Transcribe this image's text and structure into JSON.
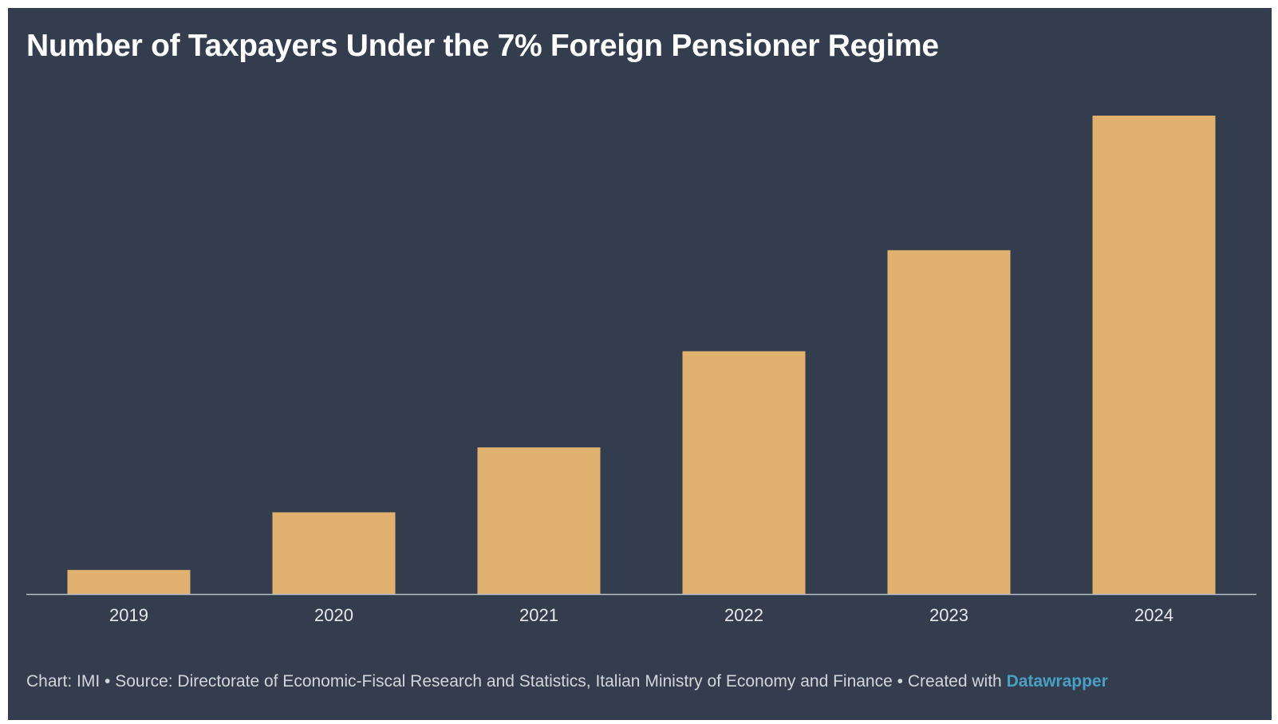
{
  "chart_data": {
    "type": "bar",
    "title": "Number of Taxpayers Under the 7% Foreign Pensioner Regime",
    "categories": [
      "2019",
      "2020",
      "2021",
      "2022",
      "2023",
      "2024"
    ],
    "values": [
      1,
      3.4,
      6.1,
      10.1,
      14.3,
      19.9
    ],
    "xlabel": "",
    "ylabel": "",
    "ylim": [
      0,
      19.9
    ],
    "grid": false,
    "legend": "none",
    "bar_color": "#e1b26f",
    "background_color": "#333d4e",
    "axis_color": "#b8bec8",
    "tick_label_color": "#e6e8ec"
  },
  "footer": {
    "chart_by": "Chart: IMI",
    "separator": " • ",
    "source": "Source: Directorate of Economic-Fiscal Research and Statistics, Italian Ministry of Economy and Finance",
    "created_with": "Created with ",
    "link_text": "Datawrapper",
    "link_color": "#4a9fc4"
  }
}
